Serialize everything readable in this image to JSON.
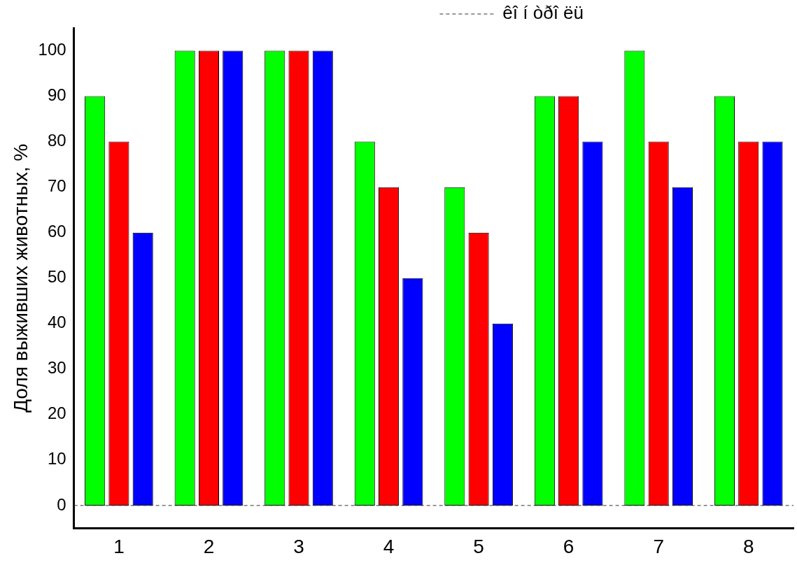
{
  "chart_data": {
    "type": "bar",
    "ylabel": "Доля выживших животных, %",
    "categories": [
      "1",
      "2",
      "3",
      "4",
      "5",
      "6",
      "7",
      "8"
    ],
    "series": [
      {
        "color": "#00ff00",
        "values": [
          90,
          100,
          100,
          80,
          70,
          90,
          100,
          90
        ]
      },
      {
        "color": "#ff0000",
        "values": [
          80,
          100,
          100,
          70,
          60,
          90,
          80,
          80
        ]
      },
      {
        "color": "#0000ff",
        "values": [
          60,
          100,
          100,
          50,
          40,
          80,
          70,
          80
        ]
      }
    ],
    "ylim": [
      -5,
      105
    ],
    "yticks": [
      0,
      10,
      20,
      30,
      40,
      50,
      60,
      70,
      80,
      90,
      100
    ],
    "ref_lines": [
      {
        "axis": "y",
        "value": 0,
        "label": "êî í òðî ëü",
        "line_style": "dashed"
      }
    ],
    "grid": false,
    "legend": "top right"
  }
}
